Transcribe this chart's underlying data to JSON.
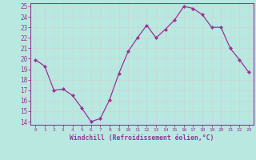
{
  "x": [
    0,
    1,
    2,
    3,
    4,
    5,
    6,
    7,
    8,
    9,
    10,
    11,
    12,
    13,
    14,
    15,
    16,
    17,
    18,
    19,
    20,
    21,
    22,
    23
  ],
  "y": [
    19.9,
    19.3,
    17.0,
    17.1,
    16.5,
    15.3,
    14.0,
    14.3,
    16.1,
    18.6,
    20.7,
    22.0,
    23.2,
    22.0,
    22.8,
    23.7,
    25.0,
    24.8,
    24.2,
    23.0,
    23.0,
    21.0,
    19.9,
    18.7
  ],
  "line_color": "#993399",
  "marker_color": "#993399",
  "bg_color": "#b8e8e0",
  "grid_color": "#c8d8d4",
  "xlabel": "Windchill (Refroidissement éolien,°C)",
  "ylim_min": 14,
  "ylim_max": 25,
  "xlim_min": 0,
  "xlim_max": 23,
  "yticks": [
    14,
    15,
    16,
    17,
    18,
    19,
    20,
    21,
    22,
    23,
    24,
    25
  ],
  "xticks": [
    0,
    1,
    2,
    3,
    4,
    5,
    6,
    7,
    8,
    9,
    10,
    11,
    12,
    13,
    14,
    15,
    16,
    17,
    18,
    19,
    20,
    21,
    22,
    23
  ],
  "xtick_labels": [
    "0",
    "1",
    "2",
    "3",
    "4",
    "5",
    "6",
    "7",
    "8",
    "9",
    "10",
    "11",
    "12",
    "13",
    "14",
    "15",
    "16",
    "17",
    "18",
    "19",
    "20",
    "21",
    "22",
    "23"
  ],
  "axis_label_color": "#993399",
  "tick_color": "#993399",
  "spine_color": "#993399"
}
